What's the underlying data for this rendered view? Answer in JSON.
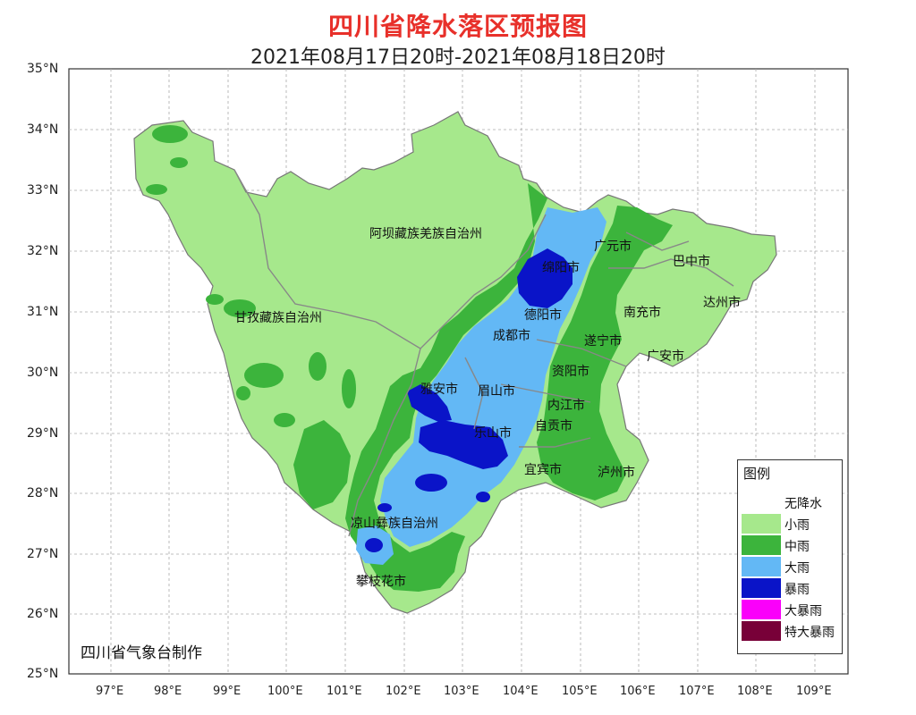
{
  "title": "四川省降水落区预报图",
  "subtitle": "2021年08月17日20时-2021年08月18日20时",
  "lat_labels": [
    "35°N",
    "34°N",
    "33°N",
    "32°N",
    "31°N",
    "30°N",
    "29°N",
    "28°N",
    "27°N",
    "26°N",
    "25°N"
  ],
  "lon_labels": [
    "97°E",
    "98°E",
    "99°E",
    "100°E",
    "101°E",
    "102°E",
    "103°E",
    "104°E",
    "105°E",
    "106°E",
    "107°E",
    "108°E",
    "109°E"
  ],
  "regions": {
    "aba": "阿坝藏族羌族自治州",
    "ganzi": "甘孜藏族自治州",
    "liangshan": "凉山彝族自治州",
    "panzhihua": "攀枝花市",
    "guangyuan": "广元市",
    "bazhong": "巴中市",
    "mianyang": "绵阳市",
    "deyang": "德阳市",
    "nanchong": "南充市",
    "dazhou": "达州市",
    "chengdu": "成都市",
    "suining": "遂宁市",
    "guangan": "广安市",
    "yaan": "雅安市",
    "meishan": "眉山市",
    "ziyang": "资阳市",
    "neijiang": "内江市",
    "leshan": "乐山市",
    "zigong": "自贡市",
    "yibin": "宜宾市",
    "luzhou": "泸州市"
  },
  "legend": {
    "title": "图例",
    "items": [
      {
        "label": "无降水",
        "color": "#ffffff"
      },
      {
        "label": "小雨",
        "color": "#a6e88c"
      },
      {
        "label": "中雨",
        "color": "#3cb43c"
      },
      {
        "label": "大雨",
        "color": "#63b8f5"
      },
      {
        "label": "暴雨",
        "color": "#0a14c8"
      },
      {
        "label": "大暴雨",
        "color": "#fa00fa"
      },
      {
        "label": "特大暴雨",
        "color": "#780038"
      }
    ]
  },
  "credit": "四川省气象台制作"
}
